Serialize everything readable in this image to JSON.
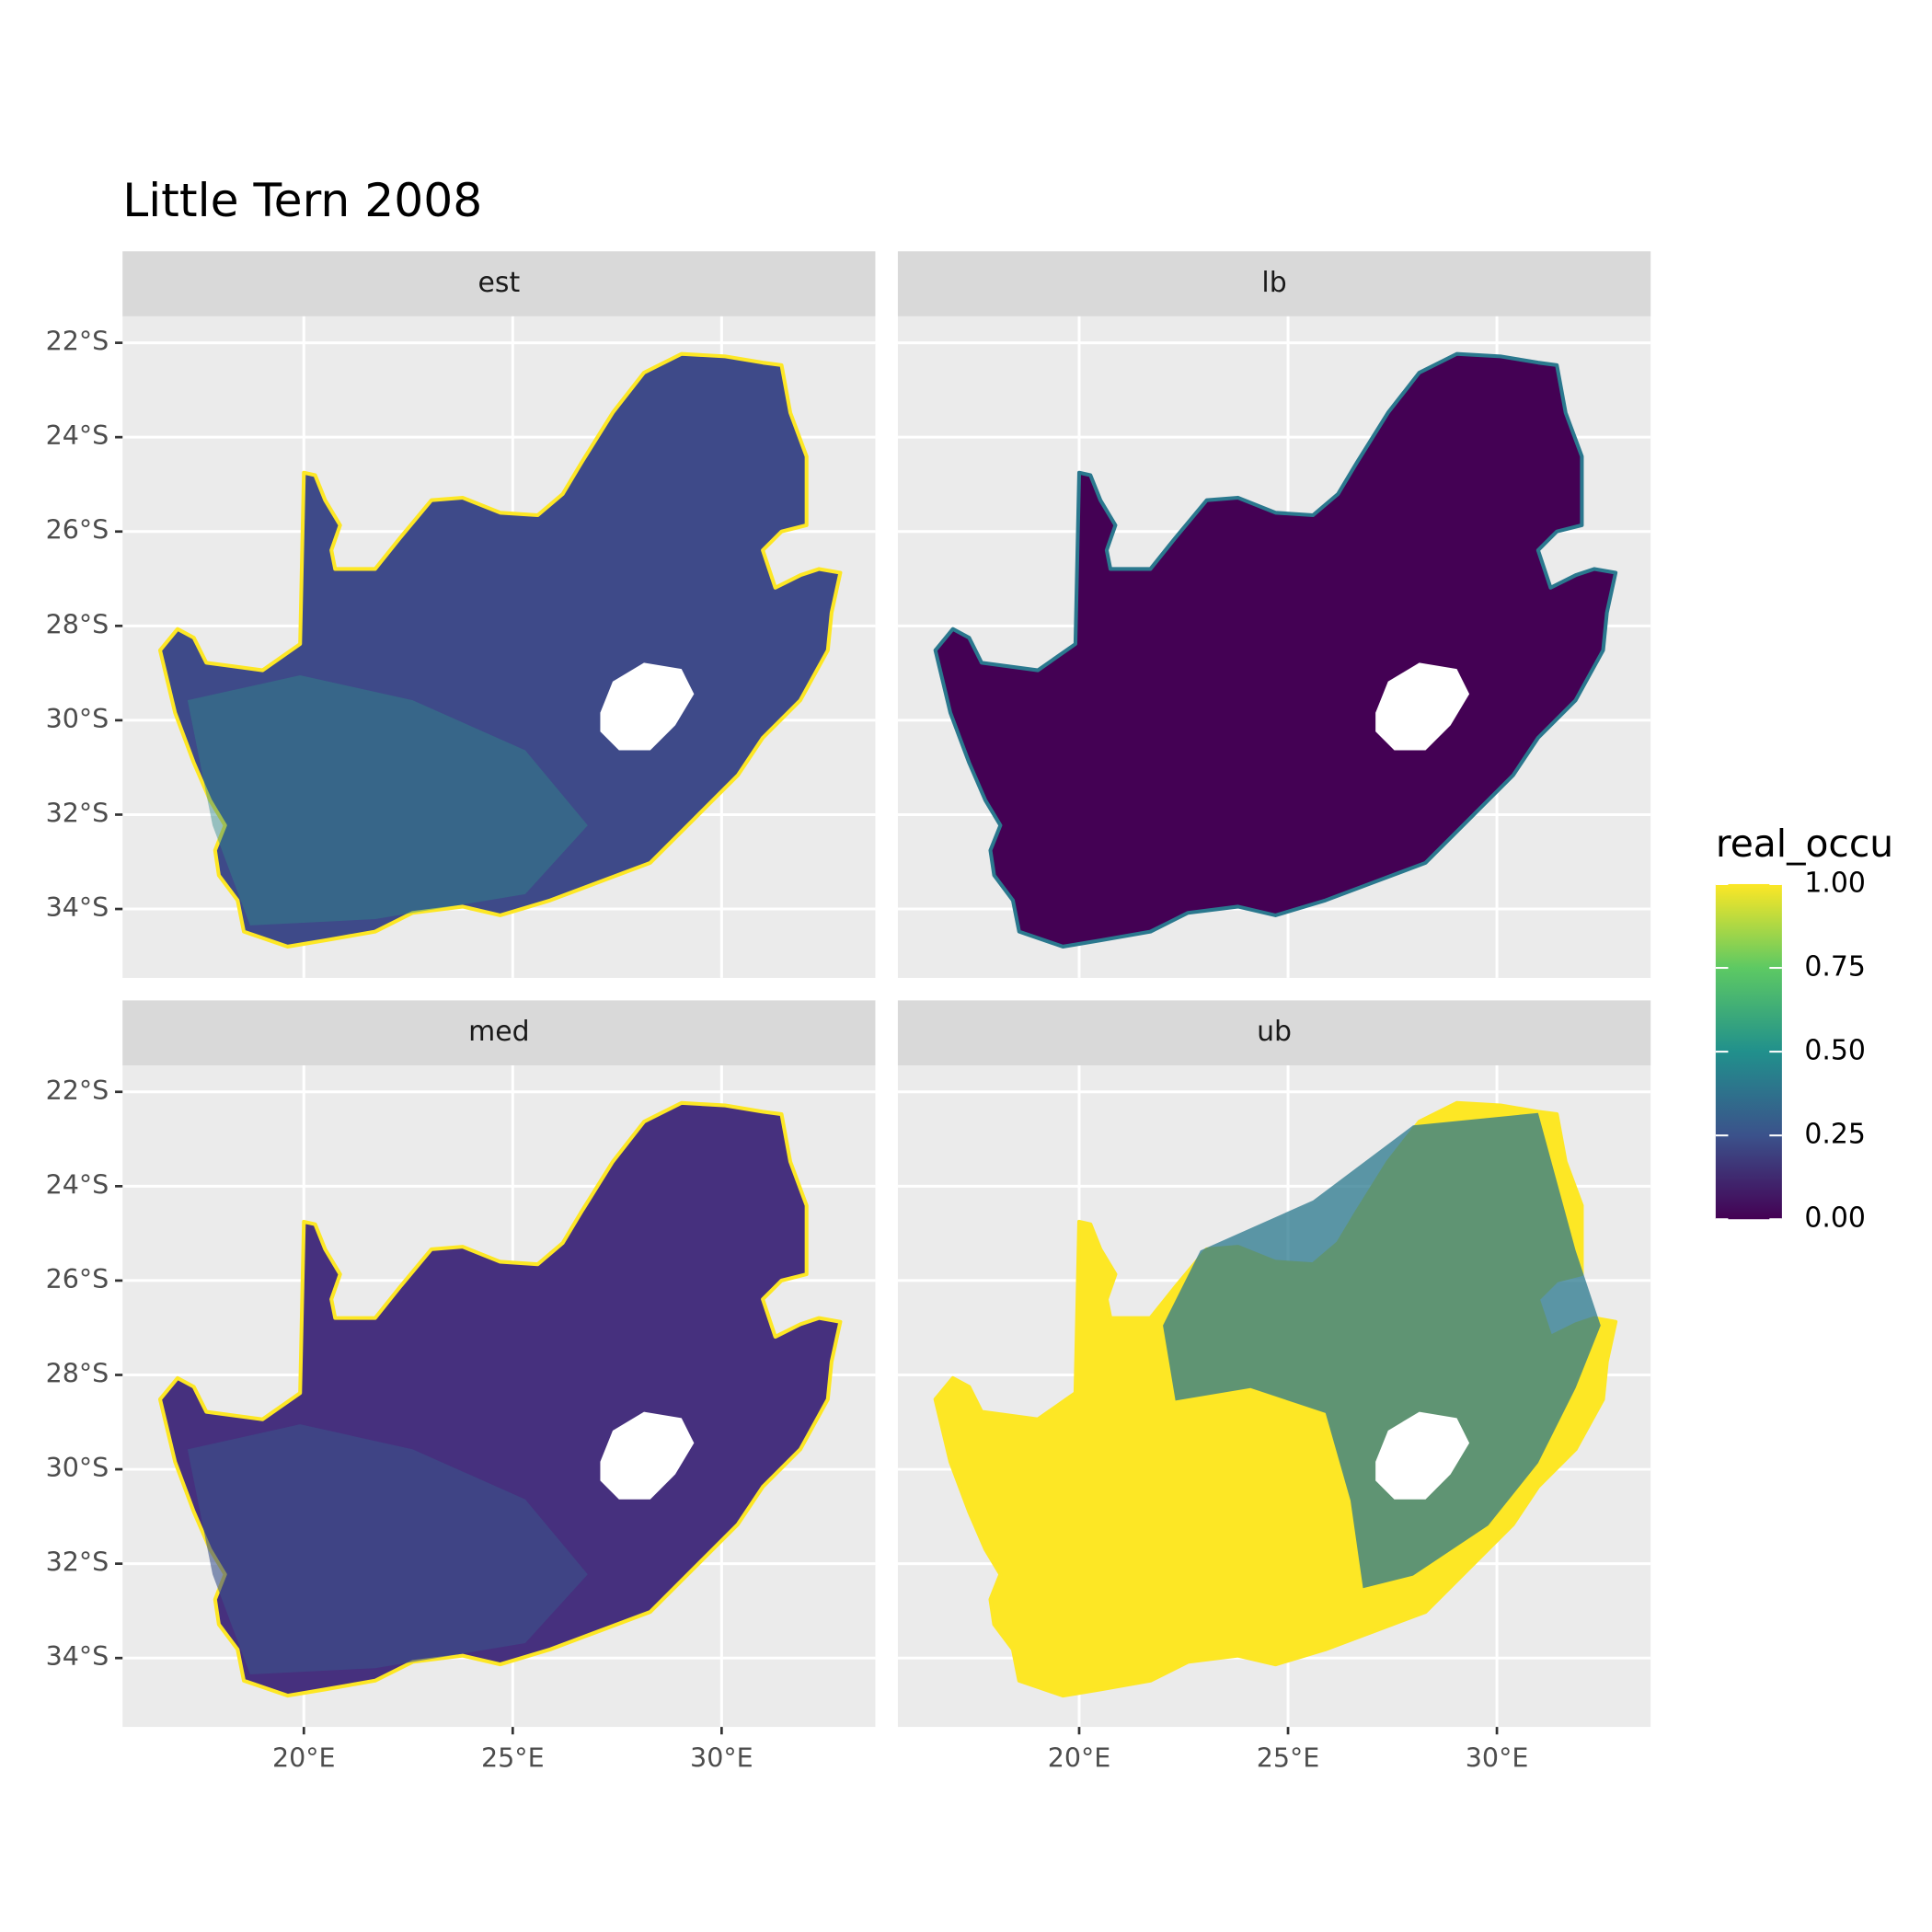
{
  "chart_data": {
    "type": "raster-map",
    "title": "Little Tern 2008",
    "facets": [
      {
        "name": "est",
        "color": "#3e4a89",
        "edge": "#fde725"
      },
      {
        "name": "lb",
        "color": "#440154",
        "edge": "#2a788e"
      },
      {
        "name": "med",
        "color": "#46307e",
        "edge": "#fde725"
      },
      {
        "name": "ub",
        "color": "#fde725",
        "edge": "#fde725"
      }
    ],
    "xlim": [
      15.66,
      33.68
    ],
    "xticks": [
      {
        "value": 20,
        "label": "20°E"
      },
      {
        "value": 25,
        "label": "25°E"
      },
      {
        "value": 30,
        "label": "30°E"
      }
    ],
    "ylim": [
      -35.46,
      -21.44
    ],
    "yticks": [
      {
        "value": -22,
        "label": "22°S"
      },
      {
        "value": -24,
        "label": "24°S"
      },
      {
        "value": -26,
        "label": "26°S"
      },
      {
        "value": -28,
        "label": "28°S"
      },
      {
        "value": -30,
        "label": "30°S"
      },
      {
        "value": -32,
        "label": "32°S"
      },
      {
        "value": -34,
        "label": "34°S"
      }
    ],
    "grid": true,
    "legend": {
      "title": "real_occu",
      "lim": [
        0,
        1
      ],
      "ticks": [
        {
          "value": 0,
          "label": "0.00"
        },
        0.25,
        {
          "value": 0.5,
          "label": "0.50"
        },
        0.75,
        {
          "value": 1,
          "label": "1.00"
        }
      ],
      "colors": [
        "#440154",
        "#3b528b",
        "#21908c",
        "#5dc963",
        "#fde725"
      ]
    }
  }
}
